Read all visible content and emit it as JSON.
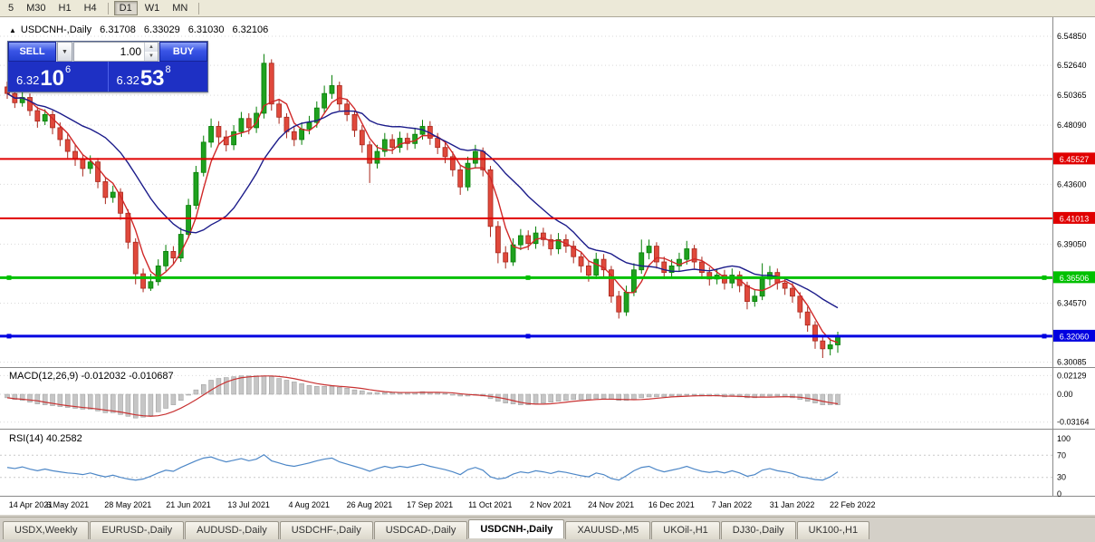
{
  "toolbar": {
    "periods": [
      {
        "label": "5",
        "active": false
      },
      {
        "label": "M30",
        "active": false
      },
      {
        "label": "H1",
        "active": false
      },
      {
        "label": "H4",
        "active": false
      },
      {
        "label": "D1",
        "active": true
      },
      {
        "label": "W1",
        "active": false
      },
      {
        "label": "MN",
        "active": false
      }
    ]
  },
  "chart_header": {
    "collapse_icon": "▲",
    "symbol": "USDCNH-,Daily",
    "open": "6.31708",
    "high": "6.33029",
    "low": "6.31030",
    "close": "6.32106"
  },
  "trade_panel": {
    "sell_label": "SELL",
    "buy_label": "BUY",
    "lot_value": "1.00",
    "dropdown_icon": "▼",
    "spin_up_icon": "▲",
    "spin_down_icon": "▼",
    "sell_price": {
      "prefix": "6.32",
      "big": "10",
      "sup": "6"
    },
    "buy_price": {
      "prefix": "6.32",
      "big": "53",
      "sup": "8"
    }
  },
  "chart_data": {
    "type": "candlestick",
    "symbol": "USDCNH-",
    "timeframe": "Daily",
    "ohlc_header": {
      "open": 6.31708,
      "high": 6.33029,
      "low": 6.3103,
      "close": 6.32106
    },
    "y_axis": {
      "range": [
        6.2975,
        6.5761
      ],
      "ticks": [
        {
          "label": "6.54850",
          "price": 6.5485
        },
        {
          "label": "6.52640",
          "price": 6.5264
        },
        {
          "label": "6.50365",
          "price": 6.50365
        },
        {
          "label": "6.48090",
          "price": 6.4809
        },
        {
          "label": "6.43600",
          "price": 6.436
        },
        {
          "label": "6.39050",
          "price": 6.3905
        },
        {
          "label": "6.34570",
          "price": 6.3457
        },
        {
          "label": "6.30085",
          "price": 6.30085
        }
      ]
    },
    "x_labels": [
      "14 Apr 2021",
      "6 May 2021",
      "28 May 2021",
      "21 Jun 2021",
      "13 Jul 2021",
      "4 Aug 2021",
      "26 Aug 2021",
      "17 Sep 2021",
      "11 Oct 2021",
      "2 Nov 2021",
      "24 Nov 2021",
      "16 Dec 2021",
      "7 Jan 2022",
      "31 Jan 2022",
      "22 Feb 2022"
    ],
    "levels": [
      {
        "label": "6.45527",
        "price": 6.45527,
        "color": "#e00000",
        "width": 2,
        "handles": false
      },
      {
        "label": "6.41013",
        "price": 6.41013,
        "color": "#e00000",
        "width": 2,
        "handles": false
      },
      {
        "label": "6.36506",
        "price": 6.36506,
        "color": "#00c000",
        "width": 3,
        "handles": true
      },
      {
        "label": "6.32060",
        "price": 6.3206,
        "color": "#0000e0",
        "width": 3,
        "handles": true
      }
    ],
    "colors": {
      "up": "#1fa11f",
      "up_edge": "#067f06",
      "down": "#e0493c",
      "down_edge": "#a8271c",
      "ma_fast": "#d02828",
      "ma_slow": "#1b1b8a",
      "grid": "#d9d9d9"
    },
    "candles": [
      [
        6.51,
        6.514,
        6.501,
        6.505
      ],
      [
        6.505,
        6.508,
        6.494,
        6.498
      ],
      [
        6.498,
        6.507,
        6.495,
        6.502
      ],
      [
        6.502,
        6.505,
        6.488,
        6.492
      ],
      [
        6.492,
        6.495,
        6.479,
        6.484
      ],
      [
        6.484,
        6.493,
        6.481,
        6.489
      ],
      [
        6.489,
        6.492,
        6.474,
        6.479
      ],
      [
        6.479,
        6.483,
        6.465,
        6.47
      ],
      [
        6.47,
        6.474,
        6.456,
        6.461
      ],
      [
        6.461,
        6.466,
        6.45,
        6.455
      ],
      [
        6.455,
        6.459,
        6.442,
        6.448
      ],
      [
        6.448,
        6.458,
        6.444,
        6.453
      ],
      [
        6.453,
        6.456,
        6.433,
        6.438
      ],
      [
        6.438,
        6.441,
        6.421,
        6.426
      ],
      [
        6.426,
        6.435,
        6.422,
        6.43
      ],
      [
        6.43,
        6.433,
        6.409,
        6.414
      ],
      [
        6.414,
        6.417,
        6.387,
        6.392
      ],
      [
        6.392,
        6.395,
        6.36,
        6.368
      ],
      [
        6.368,
        6.372,
        6.354,
        6.357
      ],
      [
        6.357,
        6.368,
        6.355,
        6.362
      ],
      [
        6.362,
        6.379,
        6.359,
        6.374
      ],
      [
        6.374,
        6.39,
        6.37,
        6.385
      ],
      [
        6.385,
        6.389,
        6.375,
        6.38
      ],
      [
        6.38,
        6.403,
        6.377,
        6.398
      ],
      [
        6.398,
        6.425,
        6.395,
        6.42
      ],
      [
        6.42,
        6.45,
        6.417,
        6.445
      ],
      [
        6.445,
        6.473,
        6.442,
        6.468
      ],
      [
        6.468,
        6.486,
        6.464,
        6.48
      ],
      [
        6.48,
        6.484,
        6.466,
        6.472
      ],
      [
        6.472,
        6.477,
        6.461,
        6.466
      ],
      [
        6.466,
        6.481,
        6.462,
        6.476
      ],
      [
        6.476,
        6.491,
        6.472,
        6.486
      ],
      [
        6.486,
        6.49,
        6.474,
        6.479
      ],
      [
        6.479,
        6.495,
        6.475,
        6.49
      ],
      [
        6.49,
        6.535,
        6.486,
        6.528
      ],
      [
        6.528,
        6.531,
        6.492,
        6.497
      ],
      [
        6.497,
        6.501,
        6.482,
        6.487
      ],
      [
        6.487,
        6.49,
        6.471,
        6.476
      ],
      [
        6.476,
        6.48,
        6.465,
        6.47
      ],
      [
        6.47,
        6.483,
        6.466,
        6.478
      ],
      [
        6.478,
        6.488,
        6.474,
        6.483
      ],
      [
        6.483,
        6.499,
        6.479,
        6.494
      ],
      [
        6.494,
        6.511,
        6.49,
        6.505
      ],
      [
        6.505,
        6.519,
        6.501,
        6.511
      ],
      [
        6.511,
        6.514,
        6.492,
        6.497
      ],
      [
        6.497,
        6.501,
        6.484,
        6.489
      ],
      [
        6.489,
        6.492,
        6.472,
        6.477
      ],
      [
        6.477,
        6.481,
        6.46,
        6.466
      ],
      [
        6.466,
        6.469,
        6.437,
        6.452
      ],
      [
        6.452,
        6.466,
        6.448,
        6.461
      ],
      [
        6.461,
        6.475,
        6.457,
        6.47
      ],
      [
        6.47,
        6.474,
        6.459,
        6.464
      ],
      [
        6.464,
        6.476,
        6.46,
        6.471
      ],
      [
        6.471,
        6.475,
        6.462,
        6.467
      ],
      [
        6.467,
        6.479,
        6.463,
        6.474
      ],
      [
        6.474,
        6.485,
        6.47,
        6.48
      ],
      [
        6.48,
        6.484,
        6.466,
        6.471
      ],
      [
        6.471,
        6.475,
        6.459,
        6.464
      ],
      [
        6.464,
        6.468,
        6.452,
        6.457
      ],
      [
        6.457,
        6.461,
        6.442,
        6.447
      ],
      [
        6.447,
        6.45,
        6.428,
        6.434
      ],
      [
        6.434,
        6.457,
        6.431,
        6.452
      ],
      [
        6.452,
        6.466,
        6.448,
        6.461
      ],
      [
        6.461,
        6.464,
        6.442,
        6.447
      ],
      [
        6.447,
        6.45,
        6.396,
        6.404
      ],
      [
        6.404,
        6.408,
        6.376,
        6.384
      ],
      [
        6.384,
        6.389,
        6.372,
        6.377
      ],
      [
        6.377,
        6.395,
        6.374,
        6.39
      ],
      [
        6.39,
        6.402,
        6.386,
        6.397
      ],
      [
        6.397,
        6.401,
        6.386,
        6.391
      ],
      [
        6.391,
        6.404,
        6.387,
        6.399
      ],
      [
        6.399,
        6.403,
        6.389,
        6.394
      ],
      [
        6.394,
        6.398,
        6.382,
        6.387
      ],
      [
        6.387,
        6.399,
        6.383,
        6.394
      ],
      [
        6.394,
        6.398,
        6.384,
        6.389
      ],
      [
        6.389,
        6.393,
        6.376,
        6.381
      ],
      [
        6.381,
        6.385,
        6.369,
        6.374
      ],
      [
        6.374,
        6.378,
        6.362,
        6.367
      ],
      [
        6.367,
        6.384,
        6.364,
        6.379
      ],
      [
        6.379,
        6.383,
        6.366,
        6.371
      ],
      [
        6.371,
        6.374,
        6.346,
        6.351
      ],
      [
        6.351,
        6.355,
        6.334,
        6.339
      ],
      [
        6.339,
        6.359,
        6.336,
        6.354
      ],
      [
        6.354,
        6.376,
        6.351,
        6.371
      ],
      [
        6.371,
        6.394,
        6.368,
        6.384
      ],
      [
        6.384,
        6.394,
        6.379,
        6.389
      ],
      [
        6.389,
        6.392,
        6.372,
        6.377
      ],
      [
        6.377,
        6.381,
        6.364,
        6.369
      ],
      [
        6.369,
        6.379,
        6.365,
        6.374
      ],
      [
        6.374,
        6.384,
        6.37,
        6.379
      ],
      [
        6.379,
        6.393,
        6.375,
        6.387
      ],
      [
        6.387,
        6.39,
        6.372,
        6.377
      ],
      [
        6.377,
        6.381,
        6.364,
        6.369
      ],
      [
        6.369,
        6.373,
        6.359,
        6.364
      ],
      [
        6.364,
        6.372,
        6.36,
        6.367
      ],
      [
        6.367,
        6.371,
        6.356,
        6.361
      ],
      [
        6.361,
        6.372,
        6.357,
        6.367
      ],
      [
        6.367,
        6.37,
        6.354,
        6.359
      ],
      [
        6.359,
        6.362,
        6.341,
        6.347
      ],
      [
        6.347,
        6.356,
        6.343,
        6.351
      ],
      [
        6.351,
        6.376,
        6.348,
        6.364
      ],
      [
        6.364,
        6.374,
        6.359,
        6.369
      ],
      [
        6.369,
        6.372,
        6.356,
        6.361
      ],
      [
        6.361,
        6.366,
        6.352,
        6.357
      ],
      [
        6.357,
        6.361,
        6.346,
        6.351
      ],
      [
        6.351,
        6.354,
        6.334,
        6.339
      ],
      [
        6.339,
        6.343,
        6.324,
        6.329
      ],
      [
        6.329,
        6.332,
        6.311,
        6.317
      ],
      [
        6.317,
        6.32,
        6.304,
        6.311
      ],
      [
        6.311,
        6.319,
        6.306,
        6.314
      ],
      [
        6.314,
        6.324,
        6.308,
        6.321
      ]
    ],
    "macd": {
      "label": "MACD(12,26,9) -0.012032 -0.010687",
      "hist_color": "#c6c6c6",
      "hist_edge": "#9a9a9a",
      "signal_color": "#c83232",
      "axis": [
        {
          "label": "0.02129",
          "value": 0.02129
        },
        {
          "label": "0.00",
          "value": 0
        },
        {
          "label": "-0.03164",
          "value": -0.03164
        }
      ],
      "values": [
        -0.004,
        -0.006,
        -0.007,
        -0.009,
        -0.011,
        -0.012,
        -0.013,
        -0.014,
        -0.015,
        -0.016,
        -0.017,
        -0.017,
        -0.019,
        -0.021,
        -0.021,
        -0.023,
        -0.025,
        -0.027,
        -0.026,
        -0.024,
        -0.02,
        -0.016,
        -0.012,
        -0.007,
        -0.001,
        0.005,
        0.011,
        0.016,
        0.018,
        0.019,
        0.02,
        0.021,
        0.021,
        0.021,
        0.021,
        0.02,
        0.018,
        0.016,
        0.014,
        0.012,
        0.01,
        0.009,
        0.009,
        0.009,
        0.008,
        0.007,
        0.005,
        0.004,
        0.002,
        0.002,
        0.002,
        0.002,
        0.002,
        0.002,
        0.002,
        0.003,
        0.002,
        0.002,
        0.001,
        0.0,
        -0.002,
        -0.002,
        -0.001,
        -0.002,
        -0.005,
        -0.008,
        -0.01,
        -0.011,
        -0.012,
        -0.012,
        -0.011,
        -0.01,
        -0.009,
        -0.008,
        -0.007,
        -0.006,
        -0.006,
        -0.006,
        -0.005,
        -0.005,
        -0.006,
        -0.007,
        -0.007,
        -0.006,
        -0.004,
        -0.003,
        -0.003,
        -0.003,
        -0.002,
        -0.002,
        -0.001,
        -0.001,
        -0.002,
        -0.002,
        -0.002,
        -0.003,
        -0.002,
        -0.003,
        -0.004,
        -0.004,
        -0.003,
        -0.002,
        -0.002,
        -0.003,
        -0.004,
        -0.006,
        -0.008,
        -0.01,
        -0.012,
        -0.012,
        -0.012
      ]
    },
    "rsi": {
      "label": "RSI(14) 40.2582",
      "line_color": "#4d87c7",
      "guides": [
        70,
        30
      ],
      "axis": [
        {
          "label": "100",
          "value": 100
        },
        {
          "label": "70",
          "value": 70
        },
        {
          "label": "30",
          "value": 30
        },
        {
          "label": "0",
          "value": 0
        }
      ],
      "values": [
        48,
        46,
        49,
        45,
        42,
        45,
        42,
        40,
        38,
        37,
        35,
        38,
        34,
        31,
        34,
        30,
        27,
        25,
        27,
        32,
        38,
        43,
        41,
        48,
        54,
        60,
        65,
        67,
        62,
        58,
        61,
        64,
        60,
        63,
        71,
        60,
        56,
        52,
        50,
        53,
        56,
        60,
        63,
        65,
        58,
        54,
        50,
        46,
        41,
        46,
        50,
        47,
        50,
        48,
        51,
        54,
        50,
        47,
        44,
        40,
        35,
        44,
        48,
        43,
        31,
        27,
        29,
        36,
        40,
        38,
        42,
        40,
        37,
        41,
        39,
        36,
        33,
        31,
        38,
        35,
        28,
        25,
        33,
        42,
        48,
        50,
        44,
        40,
        43,
        46,
        50,
        45,
        41,
        39,
        41,
        38,
        42,
        38,
        32,
        35,
        43,
        46,
        42,
        40,
        37,
        31,
        29,
        26,
        25,
        31,
        40
      ]
    }
  },
  "tabs": {
    "items": [
      {
        "label": "USDX,Weekly",
        "active": false
      },
      {
        "label": "EURUSD-,Daily",
        "active": false
      },
      {
        "label": "AUDUSD-,Daily",
        "active": false
      },
      {
        "label": "USDCHF-,Daily",
        "active": false
      },
      {
        "label": "USDCAD-,Daily",
        "active": false
      },
      {
        "label": "USDCNH-,Daily",
        "active": true
      },
      {
        "label": "XAUUSD-,M5",
        "active": false
      },
      {
        "label": "UKOil-,H1",
        "active": false
      },
      {
        "label": "DJ30-,Daily",
        "active": false
      },
      {
        "label": "UK100-,H1",
        "active": false
      }
    ]
  }
}
